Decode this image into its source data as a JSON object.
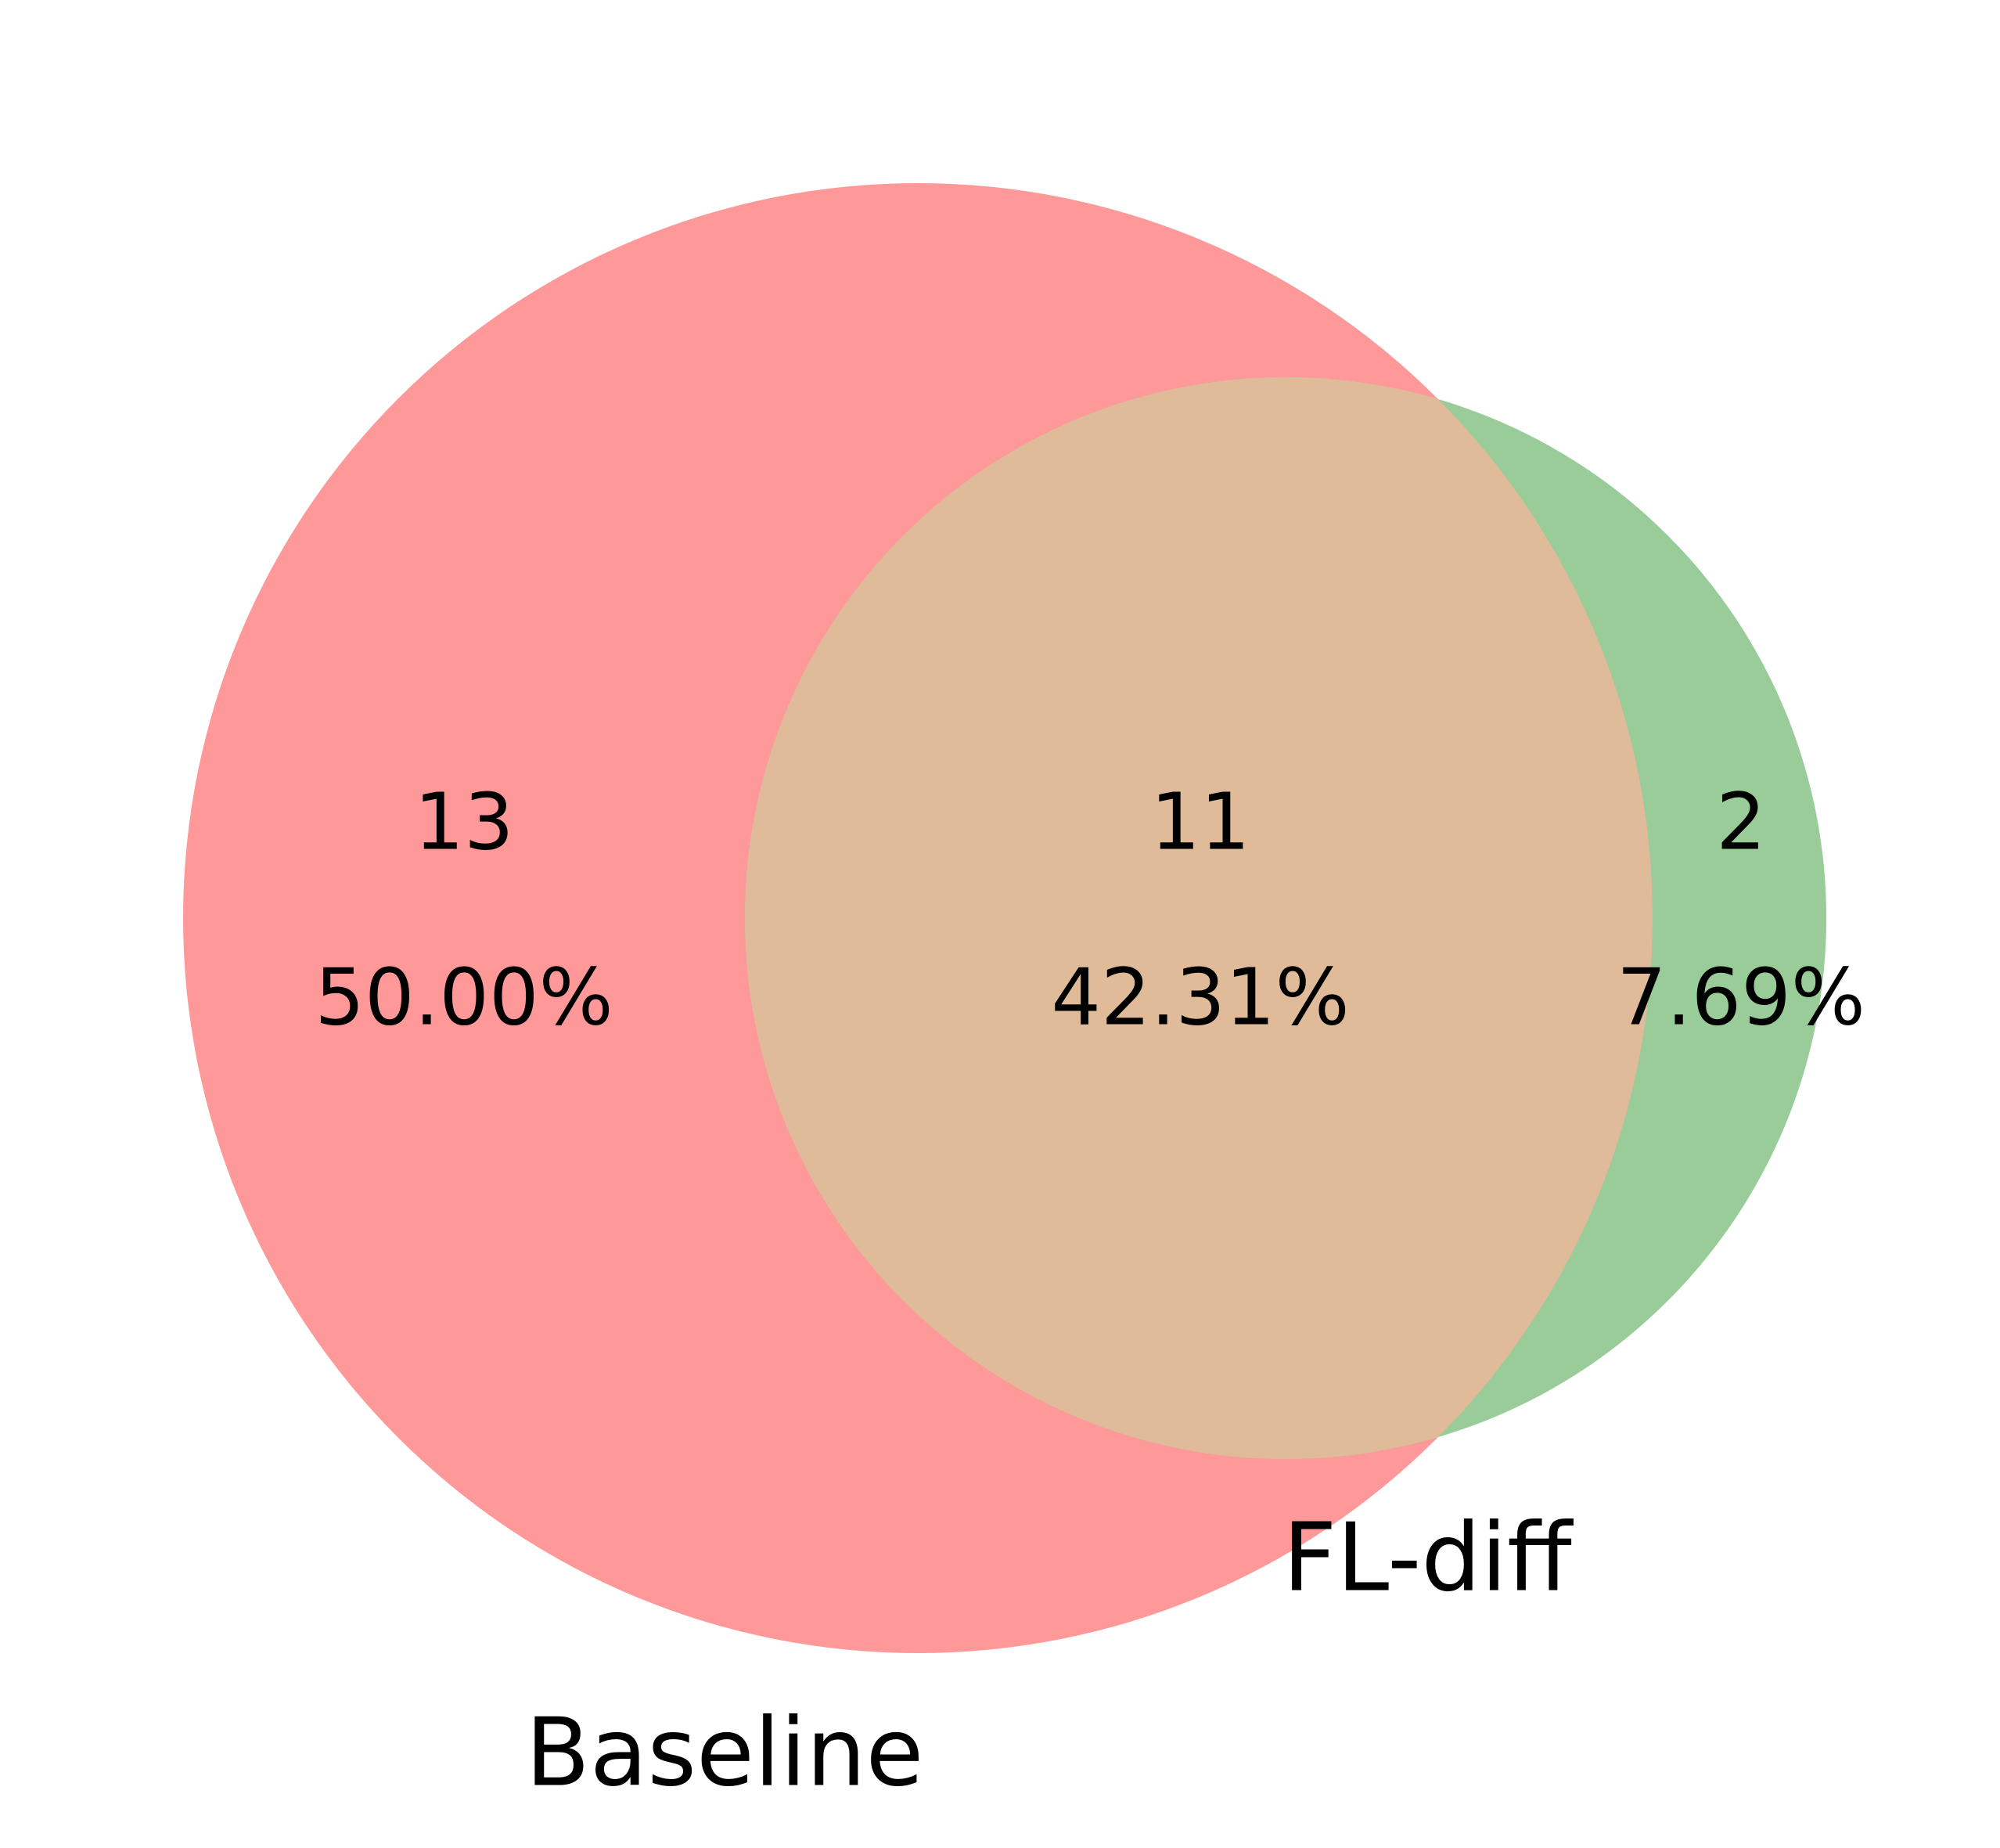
{
  "chart_data": {
    "type": "venn",
    "sets": [
      {
        "name": "Baseline",
        "color": "#ff9999"
      },
      {
        "name": "FL-diff",
        "color": "#99cc99"
      }
    ],
    "overlap_color": "#e0bb99",
    "regions": {
      "counts": [
        13,
        11,
        2
      ],
      "percents": [
        50,
        42.31,
        7.69
      ],
      "value_labels": [
        "50.00%",
        "42.31%",
        "7.69%"
      ]
    }
  }
}
